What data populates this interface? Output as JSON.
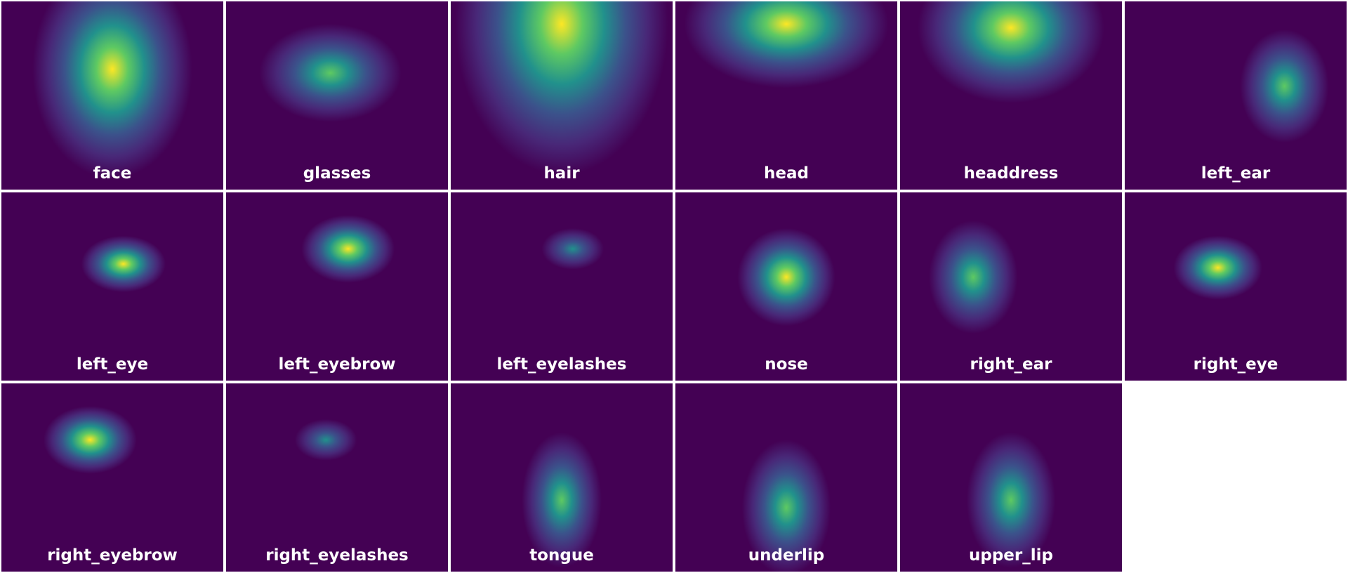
{
  "panels": [
    "face",
    "glasses",
    "hair",
    "head",
    "headdress",
    "left_ear",
    "left_eye",
    "left_eyebrow",
    "left_eyelashes",
    "nose",
    "right_ear",
    "right_eye",
    "right_eyebrow",
    "right_eyelashes",
    "tongue",
    "underlip",
    "upper_lip"
  ]
}
